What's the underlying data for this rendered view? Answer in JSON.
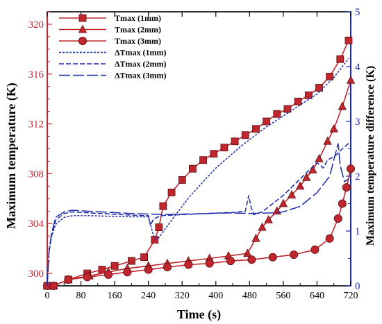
{
  "chart_data": {
    "type": "line",
    "xlabel": "Time (s)",
    "ylabel_left": "Maximum temperature (K)",
    "ylabel_right": "Maximum temperature difference (K)",
    "xlim": [
      0,
      720
    ],
    "ylim_left": [
      299,
      321
    ],
    "ylim_right": [
      0,
      5
    ],
    "x_ticks": [
      0,
      80,
      160,
      240,
      320,
      400,
      480,
      560,
      640,
      720
    ],
    "y_ticks_left": [
      300,
      304,
      308,
      312,
      316,
      320
    ],
    "y_ticks_right": [
      0,
      1,
      2,
      3,
      4,
      5
    ],
    "legend_position": "top-left",
    "colors": {
      "left_axis": "#c0262d",
      "right_axis": "#1a2aa8",
      "tmax": "#c0262d",
      "dtmax": "#1a2aa8"
    },
    "series": [
      {
        "name": "Tmax (1mm)",
        "axis": "left",
        "marker": "square",
        "line": "solid",
        "x": [
          0,
          15,
          50,
          95,
          130,
          160,
          200,
          230,
          255,
          265,
          275,
          295,
          320,
          345,
          370,
          395,
          420,
          445,
          470,
          495,
          520,
          545,
          570,
          595,
          620,
          645,
          670,
          695,
          715
        ],
        "y": [
          299.0,
          298.7,
          299.5,
          300.0,
          300.3,
          300.6,
          301.0,
          301.3,
          302.7,
          303.7,
          305.4,
          306.5,
          307.5,
          308.4,
          309.1,
          309.6,
          310.1,
          310.6,
          311.1,
          311.6,
          312.2,
          312.8,
          313.2,
          313.8,
          314.3,
          314.9,
          315.8,
          317.2,
          318.7
        ]
      },
      {
        "name": "Tmax (2mm)",
        "axis": "left",
        "marker": "triangle",
        "line": "solid",
        "x": [
          0,
          15,
          50,
          100,
          145,
          190,
          240,
          285,
          335,
          385,
          430,
          475,
          495,
          510,
          525,
          545,
          560,
          580,
          600,
          615,
          630,
          645,
          665,
          680,
          700,
          720
        ],
        "y": [
          299.0,
          298.7,
          299.5,
          299.8,
          300.1,
          300.4,
          300.6,
          300.8,
          301.0,
          301.2,
          301.4,
          301.6,
          302.8,
          303.7,
          304.3,
          305.0,
          305.6,
          306.3,
          307.0,
          307.7,
          308.3,
          309.2,
          310.6,
          311.6,
          313.4,
          315.5
        ]
      },
      {
        "name": "Tmax (3mm)",
        "axis": "left",
        "marker": "circle",
        "line": "solid",
        "x": [
          0,
          15,
          50,
          95,
          145,
          190,
          240,
          285,
          335,
          385,
          435,
          485,
          535,
          585,
          635,
          670,
          690,
          700,
          710,
          720
        ],
        "y": [
          299.0,
          298.7,
          299.5,
          299.7,
          299.9,
          300.1,
          300.3,
          300.5,
          300.7,
          300.8,
          301.0,
          301.1,
          301.3,
          301.5,
          301.9,
          302.8,
          304.4,
          305.6,
          306.9,
          308.4
        ]
      },
      {
        "name": "ΔTmax (1mm)",
        "axis": "right",
        "line": "dotted",
        "x": [
          0,
          4,
          10,
          20,
          40,
          60,
          100,
          150,
          200,
          240,
          252,
          258,
          265,
          280,
          300,
          340,
          400,
          460,
          520,
          580,
          640,
          680,
          700,
          715
        ],
        "y": [
          0.0,
          0.6,
          0.9,
          1.12,
          1.25,
          1.28,
          1.28,
          1.27,
          1.26,
          1.26,
          0.92,
          0.85,
          0.88,
          1.04,
          1.25,
          1.65,
          2.15,
          2.55,
          2.9,
          3.2,
          3.5,
          3.8,
          4.0,
          4.15
        ]
      },
      {
        "name": "ΔTmax (2mm)",
        "axis": "right",
        "line": "dashed",
        "x": [
          0,
          4,
          10,
          20,
          40,
          60,
          100,
          150,
          200,
          240,
          245,
          252,
          270,
          320,
          380,
          440,
          470,
          478,
          483,
          490,
          510,
          560,
          600,
          640,
          655,
          665,
          680,
          700,
          715
        ],
        "y": [
          0.0,
          0.6,
          0.9,
          1.2,
          1.32,
          1.35,
          1.33,
          1.31,
          1.29,
          1.28,
          1.1,
          1.22,
          1.28,
          1.3,
          1.32,
          1.34,
          1.36,
          1.65,
          1.45,
          1.3,
          1.35,
          1.65,
          1.95,
          2.25,
          2.15,
          2.3,
          2.35,
          2.5,
          2.6
        ]
      },
      {
        "name": "ΔTmax (3mm)",
        "axis": "right",
        "line": "longdash",
        "x": [
          0,
          4,
          10,
          20,
          40,
          60,
          100,
          150,
          200,
          240,
          280,
          330,
          380,
          430,
          480,
          530,
          560,
          600,
          640,
          670,
          685,
          690,
          695,
          705,
          715
        ],
        "y": [
          0.0,
          0.6,
          0.95,
          1.25,
          1.35,
          1.38,
          1.36,
          1.34,
          1.32,
          1.31,
          1.3,
          1.31,
          1.32,
          1.33,
          1.32,
          1.33,
          1.35,
          1.45,
          1.7,
          2.0,
          2.45,
          2.6,
          2.2,
          1.9,
          1.95
        ]
      }
    ]
  }
}
